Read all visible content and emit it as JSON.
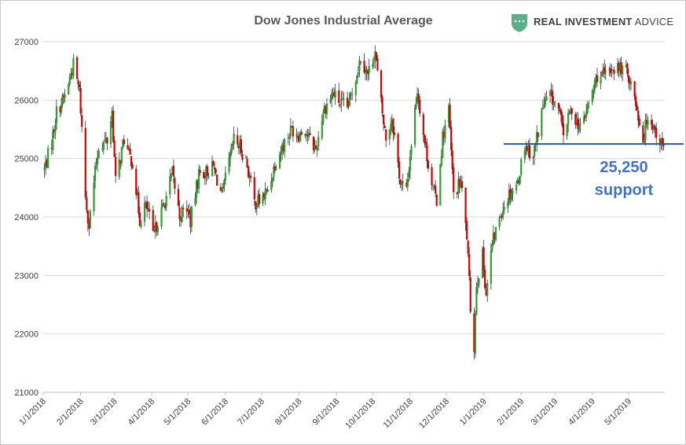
{
  "chart_data": {
    "type": "candlestick",
    "title": "Dow Jones Industrial Average",
    "xlabel": "",
    "ylabel": "",
    "ylim": [
      21000,
      27000
    ],
    "yticks": [
      21000,
      22000,
      23000,
      24000,
      25000,
      26000,
      27000
    ],
    "xticks": [
      "1/1/2018",
      "2/1/2018",
      "3/1/2018",
      "4/1/2018",
      "5/1/2018",
      "6/1/2018",
      "7/1/2018",
      "8/1/2018",
      "9/1/2018",
      "10/1/2018",
      "11/1/2018",
      "12/1/2018",
      "1/1/2019",
      "2/1/2019",
      "3/1/2019",
      "4/1/2019",
      "5/1/2019"
    ],
    "grid": true,
    "up_color": "#2e9e2e",
    "down_color": "#d40000",
    "close_path": [
      [
        "2018-01-02",
        24820
      ],
      [
        "2018-01-08",
        25280
      ],
      [
        "2018-01-12",
        25800
      ],
      [
        "2018-01-19",
        26070
      ],
      [
        "2018-01-26",
        26610
      ],
      [
        "2018-01-31",
        26150
      ],
      [
        "2018-02-02",
        25520
      ],
      [
        "2018-02-05",
        24350
      ],
      [
        "2018-02-08",
        23860
      ],
      [
        "2018-02-12",
        24600
      ],
      [
        "2018-02-16",
        25220
      ],
      [
        "2018-02-23",
        25310
      ],
      [
        "2018-02-27",
        25800
      ],
      [
        "2018-03-02",
        24600
      ],
      [
        "2018-03-09",
        25340
      ],
      [
        "2018-03-13",
        25050
      ],
      [
        "2018-03-16",
        24950
      ],
      [
        "2018-03-22",
        23950
      ],
      [
        "2018-03-26",
        24200
      ],
      [
        "2018-03-29",
        24100
      ],
      [
        "2018-04-02",
        23650
      ],
      [
        "2018-04-06",
        23940
      ],
      [
        "2018-04-11",
        24200
      ],
      [
        "2018-04-18",
        24750
      ],
      [
        "2018-04-24",
        24020
      ],
      [
        "2018-04-30",
        24160
      ],
      [
        "2018-05-03",
        23930
      ],
      [
        "2018-05-10",
        24740
      ],
      [
        "2018-05-16",
        24770
      ],
      [
        "2018-05-22",
        24850
      ],
      [
        "2018-05-29",
        24360
      ],
      [
        "2018-06-01",
        24640
      ],
      [
        "2018-06-08",
        25320
      ],
      [
        "2018-06-13",
        25200
      ],
      [
        "2018-06-18",
        24980
      ],
      [
        "2018-06-25",
        24250
      ],
      [
        "2018-06-29",
        24270
      ],
      [
        "2018-07-06",
        24450
      ],
      [
        "2018-07-12",
        24920
      ],
      [
        "2018-07-18",
        25200
      ],
      [
        "2018-07-26",
        25520
      ],
      [
        "2018-07-31",
        25420
      ],
      [
        "2018-08-06",
        25500
      ],
      [
        "2018-08-10",
        25310
      ],
      [
        "2018-08-15",
        25160
      ],
      [
        "2018-08-21",
        25820
      ],
      [
        "2018-08-29",
        26120
      ],
      [
        "2018-09-04",
        25950
      ],
      [
        "2018-09-10",
        25860
      ],
      [
        "2018-09-14",
        26150
      ],
      [
        "2018-09-21",
        26740
      ],
      [
        "2018-09-27",
        26440
      ],
      [
        "2018-10-03",
        26830
      ],
      [
        "2018-10-05",
        26450
      ],
      [
        "2018-10-10",
        25600
      ],
      [
        "2018-10-12",
        25340
      ],
      [
        "2018-10-17",
        25700
      ],
      [
        "2018-10-24",
        24580
      ],
      [
        "2018-10-29",
        24440
      ],
      [
        "2018-11-02",
        25270
      ],
      [
        "2018-11-07",
        26180
      ],
      [
        "2018-11-13",
        25280
      ],
      [
        "2018-11-20",
        24470
      ],
      [
        "2018-11-23",
        24290
      ],
      [
        "2018-11-28",
        25370
      ],
      [
        "2018-12-03",
        25830
      ],
      [
        "2018-12-07",
        24390
      ],
      [
        "2018-12-13",
        24600
      ],
      [
        "2018-12-18",
        23680
      ],
      [
        "2018-12-21",
        22450
      ],
      [
        "2018-12-24",
        21790
      ],
      [
        "2018-12-26",
        22880
      ],
      [
        "2018-12-31",
        23330
      ],
      [
        "2019-01-03",
        22690
      ],
      [
        "2019-01-08",
        23530
      ],
      [
        "2019-01-15",
        24070
      ],
      [
        "2019-01-22",
        24400
      ],
      [
        "2019-01-29",
        24580
      ],
      [
        "2019-02-04",
        25240
      ],
      [
        "2019-02-11",
        25050
      ],
      [
        "2019-02-19",
        25890
      ],
      [
        "2019-02-25",
        26090
      ],
      [
        "2019-03-04",
        25820
      ],
      [
        "2019-03-08",
        25450
      ],
      [
        "2019-03-15",
        25850
      ],
      [
        "2019-03-22",
        25500
      ],
      [
        "2019-03-29",
        25930
      ],
      [
        "2019-04-05",
        26420
      ],
      [
        "2019-04-12",
        26410
      ],
      [
        "2019-04-18",
        26560
      ],
      [
        "2019-04-26",
        26540
      ],
      [
        "2019-05-01",
        26430
      ],
      [
        "2019-05-07",
        25960
      ],
      [
        "2019-05-13",
        25320
      ],
      [
        "2019-05-17",
        25770
      ],
      [
        "2019-05-23",
        25490
      ],
      [
        "2019-05-30",
        25170
      ]
    ],
    "support_level": 25250,
    "annotations": [
      {
        "line1": "25,250",
        "line2": "support"
      }
    ]
  },
  "branding": {
    "name_bold": "REAL INVESTMENT",
    "name_light": " ADVICE",
    "logo_icon": "shield-icon",
    "logo_color": "#5aae88"
  }
}
